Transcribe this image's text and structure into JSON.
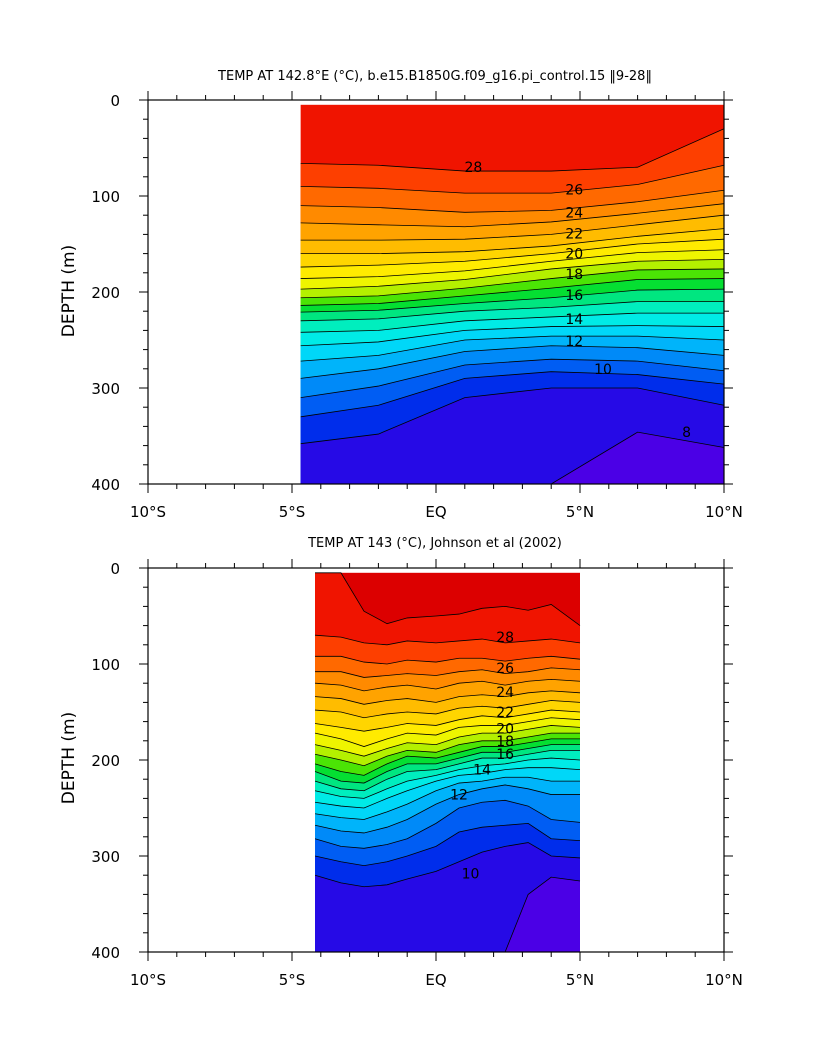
{
  "chart_data": [
    {
      "type": "contour",
      "title": "TEMP AT 142.8°E (°C), b.e15.B1850G.f09_g16.pi_control.15 ‖9-28‖",
      "ylabel": "DEPTH (m)",
      "xlabel": "",
      "xlim": [
        -10,
        10
      ],
      "ylim": [
        400,
        0
      ],
      "xticks": [
        {
          "v": -10,
          "label": "10°S"
        },
        {
          "v": -5,
          "label": "5°S"
        },
        {
          "v": 0,
          "label": "EQ"
        },
        {
          "v": 5,
          "label": "5°N"
        },
        {
          "v": 10,
          "label": "10°N"
        }
      ],
      "yticks": [
        {
          "v": 0,
          "label": "0"
        },
        {
          "v": 100,
          "label": "100"
        },
        {
          "v": 200,
          "label": "200"
        },
        {
          "v": 300,
          "label": "300"
        },
        {
          "v": 400,
          "label": "400"
        }
      ],
      "data_extent": {
        "x": [
          -4.7,
          10
        ],
        "y": [
          5,
          400
        ]
      },
      "x_nodes": [
        -4.7,
        -2,
        1,
        4,
        7,
        10
      ],
      "isotherms": [
        {
          "t": 28,
          "depths": [
            66,
            68,
            74,
            74,
            70,
            30
          ],
          "label": {
            "x": 1.3,
            "y": 70
          }
        },
        {
          "t": 27,
          "depths": [
            90,
            92,
            97,
            97,
            88,
            68
          ],
          "label": null
        },
        {
          "t": 26,
          "depths": [
            110,
            112,
            117,
            115,
            106,
            94
          ],
          "label": {
            "x": 4.8,
            "y": 93
          }
        },
        {
          "t": 25,
          "depths": [
            128,
            130,
            132,
            127,
            118,
            108
          ],
          "label": null
        },
        {
          "t": 24,
          "depths": [
            146,
            146,
            145,
            140,
            130,
            120
          ],
          "label": {
            "x": 4.8,
            "y": 117
          }
        },
        {
          "t": 23,
          "depths": [
            160,
            160,
            158,
            152,
            142,
            134
          ],
          "label": null
        },
        {
          "t": 22,
          "depths": [
            174,
            172,
            168,
            160,
            150,
            145
          ],
          "label": {
            "x": 4.8,
            "y": 139
          }
        },
        {
          "t": 21,
          "depths": [
            186,
            184,
            178,
            168,
            159,
            156
          ],
          "label": null
        },
        {
          "t": 20,
          "depths": [
            197,
            194,
            187,
            176,
            168,
            166
          ],
          "label": {
            "x": 4.8,
            "y": 160
          }
        },
        {
          "t": 19,
          "depths": [
            206,
            204,
            196,
            186,
            177,
            176
          ],
          "label": null
        },
        {
          "t": 18,
          "depths": [
            214,
            212,
            204,
            196,
            187,
            186
          ],
          "label": {
            "x": 4.8,
            "y": 181
          }
        },
        {
          "t": 17,
          "depths": [
            221,
            219,
            212,
            206,
            198,
            197
          ],
          "label": null
        },
        {
          "t": 16,
          "depths": [
            230,
            228,
            220,
            216,
            210,
            210
          ],
          "label": {
            "x": 4.8,
            "y": 203
          }
        },
        {
          "t": 15,
          "depths": [
            242,
            240,
            230,
            226,
            222,
            222
          ],
          "label": null
        },
        {
          "t": 14,
          "depths": [
            256,
            252,
            240,
            236,
            235,
            236
          ],
          "label": {
            "x": 4.8,
            "y": 228
          }
        },
        {
          "t": 13,
          "depths": [
            272,
            266,
            250,
            246,
            246,
            250
          ],
          "label": null
        },
        {
          "t": 12,
          "depths": [
            290,
            280,
            262,
            256,
            258,
            266
          ],
          "label": {
            "x": 4.8,
            "y": 251
          }
        },
        {
          "t": 11,
          "depths": [
            310,
            298,
            276,
            270,
            272,
            282
          ],
          "label": null
        },
        {
          "t": 10,
          "depths": [
            330,
            318,
            290,
            283,
            286,
            296
          ],
          "label": {
            "x": 5.8,
            "y": 280
          }
        },
        {
          "t": 9,
          "depths": [
            358,
            348,
            310,
            300,
            300,
            318
          ],
          "label": null
        },
        {
          "t": 8,
          "depths": [
            400,
            400,
            400,
            400,
            346,
            362
          ],
          "label": {
            "x": 8.7,
            "y": 346
          }
        }
      ]
    },
    {
      "type": "contour",
      "title": "TEMP AT 143 (°C), Johnson et al (2002)",
      "ylabel": "DEPTH (m)",
      "xlabel": "",
      "xlim": [
        -10,
        10
      ],
      "ylim": [
        400,
        0
      ],
      "xticks": [
        {
          "v": -10,
          "label": "10°S"
        },
        {
          "v": -5,
          "label": "5°S"
        },
        {
          "v": 0,
          "label": "EQ"
        },
        {
          "v": 5,
          "label": "5°N"
        },
        {
          "v": 10,
          "label": "10°N"
        }
      ],
      "yticks": [
        {
          "v": 0,
          "label": "0"
        },
        {
          "v": 100,
          "label": "100"
        },
        {
          "v": 200,
          "label": "200"
        },
        {
          "v": 300,
          "label": "300"
        },
        {
          "v": 400,
          "label": "400"
        }
      ],
      "data_extent": {
        "x": [
          -4.2,
          5
        ],
        "y": [
          5,
          400
        ]
      },
      "x_nodes": [
        -4.2,
        -3.3,
        -2.5,
        -1.7,
        -1,
        0,
        0.8,
        1.6,
        2.4,
        3.2,
        4,
        5
      ],
      "isotherms": [
        {
          "t": 29,
          "depths": [
            5,
            5,
            45,
            58,
            52,
            50,
            48,
            42,
            40,
            44,
            38,
            60
          ],
          "label": null
        },
        {
          "t": 28,
          "depths": [
            70,
            72,
            78,
            80,
            76,
            78,
            76,
            74,
            78,
            76,
            74,
            78
          ],
          "label": {
            "x": 2.4,
            "y": 72
          }
        },
        {
          "t": 27,
          "depths": [
            92,
            92,
            98,
            100,
            96,
            98,
            94,
            94,
            97,
            94,
            92,
            95
          ],
          "label": null
        },
        {
          "t": 26,
          "depths": [
            108,
            108,
            114,
            112,
            110,
            112,
            108,
            106,
            110,
            108,
            104,
            106
          ],
          "label": {
            "x": 2.4,
            "y": 104
          }
        },
        {
          "t": 25,
          "depths": [
            120,
            122,
            128,
            124,
            122,
            126,
            120,
            118,
            122,
            118,
            116,
            118
          ],
          "label": null
        },
        {
          "t": 24,
          "depths": [
            134,
            136,
            142,
            138,
            136,
            140,
            134,
            132,
            134,
            130,
            128,
            130
          ],
          "label": {
            "x": 2.4,
            "y": 129
          }
        },
        {
          "t": 23,
          "depths": [
            148,
            150,
            156,
            152,
            150,
            152,
            146,
            144,
            146,
            142,
            138,
            140
          ],
          "label": null
        },
        {
          "t": 22,
          "depths": [
            162,
            166,
            170,
            166,
            162,
            164,
            158,
            154,
            156,
            152,
            148,
            150
          ],
          "label": {
            "x": 2.4,
            "y": 150
          }
        },
        {
          "t": 21,
          "depths": [
            172,
            178,
            186,
            178,
            172,
            174,
            166,
            164,
            164,
            160,
            156,
            158
          ],
          "label": null
        },
        {
          "t": 20,
          "depths": [
            184,
            190,
            196,
            188,
            182,
            184,
            176,
            172,
            172,
            168,
            164,
            166
          ],
          "label": {
            "x": 2.4,
            "y": 167
          }
        },
        {
          "t": 19,
          "depths": [
            194,
            200,
            206,
            196,
            190,
            192,
            184,
            180,
            180,
            176,
            172,
            172
          ],
          "label": null
        },
        {
          "t": 18,
          "depths": [
            204,
            212,
            216,
            204,
            196,
            198,
            192,
            186,
            186,
            182,
            178,
            178
          ],
          "label": {
            "x": 2.4,
            "y": 180
          }
        },
        {
          "t": 17,
          "depths": [
            212,
            222,
            224,
            212,
            204,
            204,
            198,
            192,
            192,
            188,
            184,
            184
          ],
          "label": null
        },
        {
          "t": 16,
          "depths": [
            222,
            230,
            232,
            220,
            212,
            210,
            204,
            198,
            198,
            194,
            190,
            190
          ],
          "label": {
            "x": 2.4,
            "y": 194
          }
        },
        {
          "t": 15,
          "depths": [
            232,
            238,
            240,
            230,
            222,
            216,
            210,
            206,
            204,
            200,
            198,
            200
          ],
          "label": null
        },
        {
          "t": 14,
          "depths": [
            244,
            248,
            250,
            240,
            232,
            222,
            216,
            214,
            210,
            208,
            208,
            210
          ],
          "label": {
            "x": 1.6,
            "y": 210
          }
        },
        {
          "t": 13,
          "depths": [
            256,
            260,
            262,
            254,
            246,
            232,
            224,
            222,
            218,
            218,
            222,
            222
          ],
          "label": null
        },
        {
          "t": 12,
          "depths": [
            268,
            274,
            276,
            270,
            262,
            246,
            236,
            230,
            226,
            230,
            236,
            236
          ],
          "label": {
            "x": 0.8,
            "y": 236
          }
        },
        {
          "t": 11,
          "depths": [
            282,
            290,
            292,
            288,
            282,
            266,
            250,
            244,
            242,
            248,
            262,
            265
          ],
          "label": null
        },
        {
          "t": 10,
          "depths": [
            300,
            306,
            310,
            306,
            300,
            290,
            275,
            270,
            268,
            266,
            282,
            284
          ],
          "label": {
            "x": 1.2,
            "y": 318
          }
        },
        {
          "t": 9,
          "depths": [
            320,
            328,
            332,
            330,
            324,
            316,
            306,
            296,
            290,
            286,
            300,
            302
          ],
          "label": null
        },
        {
          "t": 8,
          "depths": [
            400,
            400,
            400,
            400,
            400,
            400,
            400,
            400,
            400,
            340,
            322,
            326
          ],
          "label": null
        }
      ]
    }
  ]
}
